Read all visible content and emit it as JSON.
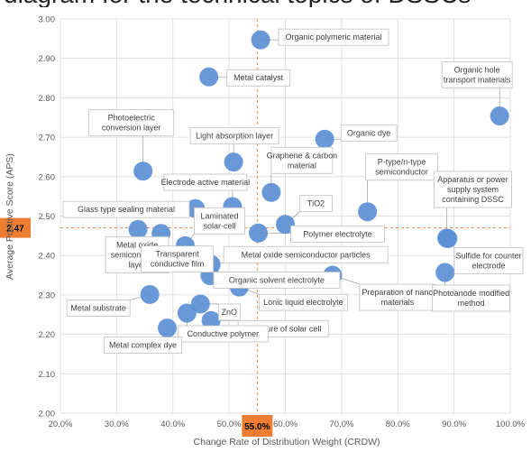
{
  "page": {
    "cut_heading": "diagram for the technical topics of DSSCs"
  },
  "chart_data": {
    "type": "scatter",
    "title": "",
    "xlabel": "Change Rate of Distribution Weight (CRDW)",
    "ylabel": "Average Positive Score (APS)",
    "xlim": [
      20,
      100
    ],
    "ylim": [
      2.0,
      3.0
    ],
    "x_ticks": [
      "20.0%",
      "30.0%",
      "40.0%",
      "50.0%",
      "60.0%",
      "70.0%",
      "80.0%",
      "90.0%",
      "100.0%"
    ],
    "y_ticks": [
      "2.00",
      "2.10",
      "2.20",
      "2.30",
      "2.40",
      "2.50",
      "2.60",
      "2.70",
      "2.80",
      "2.90",
      "3.00"
    ],
    "grid": true,
    "colors": {
      "point": "#5b8fd4",
      "reference": "#ed7d31"
    },
    "reference_lines": {
      "x": 55.0,
      "y": 2.47,
      "x_label": "55.0%",
      "y_label": "2.47"
    },
    "points": [
      {
        "label": "Organic polymeric material",
        "x": 55.6,
        "y": 2.947
      },
      {
        "label": "Metal catalyst",
        "x": 46.4,
        "y": 2.853
      },
      {
        "label": "Organic hole transport materials",
        "x": 98.1,
        "y": 2.754
      },
      {
        "label": "Organic dye",
        "x": 67.0,
        "y": 2.695
      },
      {
        "label": "Photoelectric conversion layer",
        "x": 34.7,
        "y": 2.614
      },
      {
        "label": "Light absorption layer",
        "x": 50.8,
        "y": 2.637
      },
      {
        "label": "Graphene & carbon material",
        "x": 57.5,
        "y": 2.56
      },
      {
        "label": "P-type/n-type semiconductor",
        "x": 74.6,
        "y": 2.511
      },
      {
        "label": "Electrode active material",
        "x": 50.6,
        "y": 2.524
      },
      {
        "label": "Glass type sealing material",
        "x": 44.0,
        "y": 2.519
      },
      {
        "label": "TiO2",
        "x": 60.0,
        "y": 2.479
      },
      {
        "label": "Apparatus or power supply system containing DSSC",
        "x": 88.7,
        "y": 2.444
      },
      {
        "label": "Metal oxide semiconductor layer",
        "x": 33.8,
        "y": 2.466
      },
      {
        "label": "Transparent conductive film",
        "x": 37.9,
        "y": 2.456
      },
      {
        "label": "Laminated solar-cell",
        "x": 42.2,
        "y": 2.425
      },
      {
        "label": "Polymer electrolyte",
        "x": 55.2,
        "y": 2.457
      },
      {
        "label": "Sulfide for counter electrode",
        "x": 88.9,
        "y": 2.443
      },
      {
        "label": "Metal oxide semiconductor particles",
        "x": 46.8,
        "y": 2.377
      },
      {
        "label": "Organic solvent electrolyte",
        "x": 46.6,
        "y": 2.349
      },
      {
        "label": "Preparation of nano materials",
        "x": 68.4,
        "y": 2.35
      },
      {
        "label": "Photoanode modified method",
        "x": 88.4,
        "y": 2.357
      },
      {
        "label": "Metal substrate",
        "x": 35.9,
        "y": 2.301
      },
      {
        "label": "Lonic liquid electrolyte",
        "x": 51.8,
        "y": 2.32
      },
      {
        "label": "ZnO",
        "x": 44.9,
        "y": 2.277
      },
      {
        "label": "Structure of solar cell",
        "x": 46.8,
        "y": 2.235
      },
      {
        "label": "Conductive polymer",
        "x": 42.5,
        "y": 2.254
      },
      {
        "label": "Metal complex dye",
        "x": 39.0,
        "y": 2.216
      }
    ]
  }
}
